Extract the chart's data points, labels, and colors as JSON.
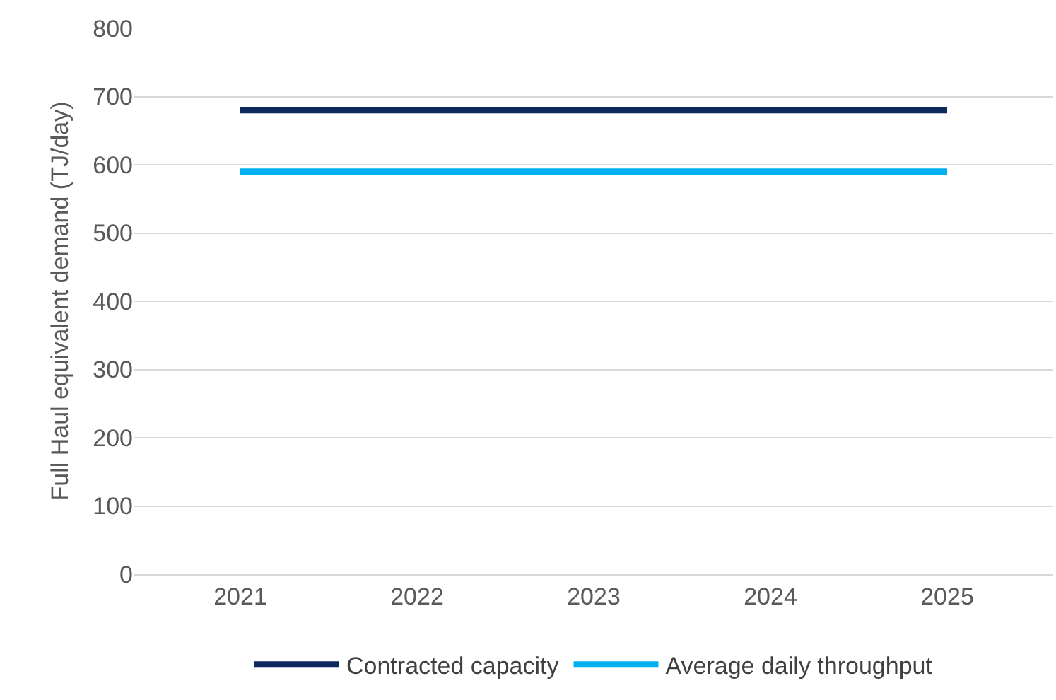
{
  "chart_data": {
    "type": "line",
    "ylabel": "Full Haul equivalent demand (TJ/day)",
    "categories": [
      "2021",
      "2022",
      "2023",
      "2024",
      "2025"
    ],
    "series": [
      {
        "name": "Contracted capacity",
        "color": "#0d2a5e",
        "values": [
          680,
          680,
          680,
          680,
          680
        ]
      },
      {
        "name": "Average daily throughput",
        "color": "#00b0f0",
        "values": [
          590,
          590,
          590,
          590,
          590
        ]
      }
    ],
    "ylim": [
      0,
      800
    ],
    "yticks": [
      0,
      100,
      200,
      300,
      400,
      500,
      600,
      700,
      800
    ],
    "grid": "y",
    "legend": "bottom",
    "marker": "none",
    "line_style": "solid"
  }
}
